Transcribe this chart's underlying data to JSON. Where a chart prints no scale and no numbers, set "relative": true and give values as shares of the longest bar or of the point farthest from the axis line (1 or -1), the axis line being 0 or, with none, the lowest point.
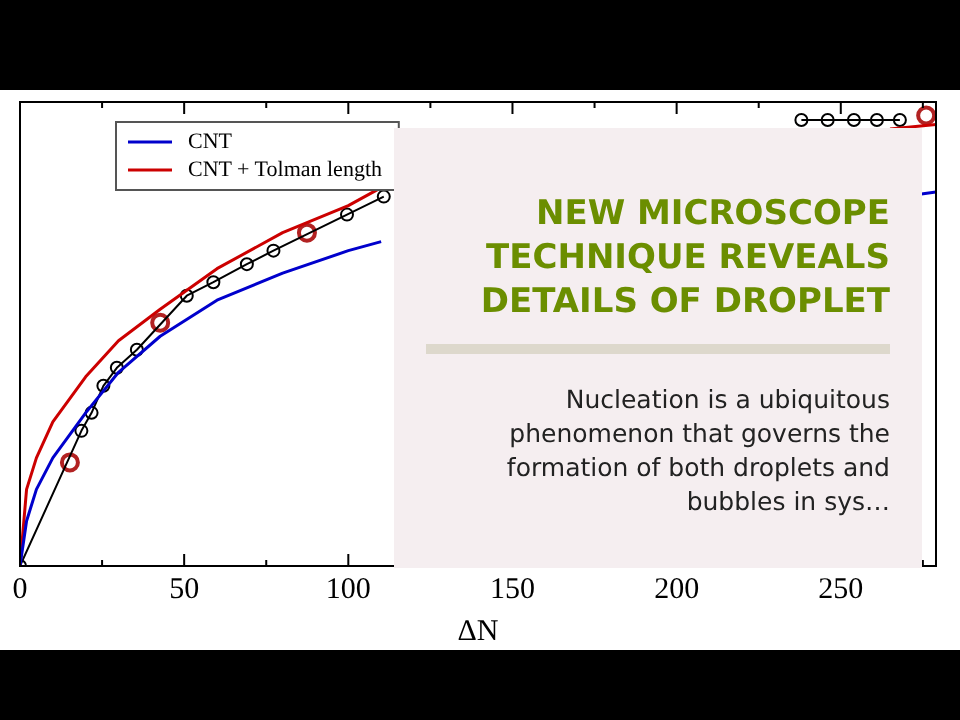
{
  "chart_data": {
    "type": "line",
    "title": "NEW MICROSCOPE TECHNIQUE REVEALS DETAILS OF DROPLET",
    "subtitle": "Nucleation is a ubiquitous phenomenon that governs the formation of both droplets and bubbles in sys…",
    "xlabel": "ΔN",
    "relative": true,
    "xlim": [
      0,
      279
    ],
    "xticks": [
      0,
      50,
      100,
      150,
      200,
      250
    ],
    "tick_labels": "x",
    "grid": false,
    "legend": "top left",
    "series": [
      {
        "name": "CNT",
        "type": "line",
        "color": "#0000cc",
        "marker": "none",
        "x": [
          0,
          2,
          5,
          10,
          15,
          20,
          30,
          42.7,
          60,
          80,
          100,
          110,
          150,
          274,
          279
        ],
        "values": [
          0,
          0.1,
          0.17,
          0.24,
          0.29,
          0.34,
          0.43,
          0.51,
          0.59,
          0.65,
          0.7,
          0.72,
          null,
          0.825,
          0.83
        ]
      },
      {
        "name": "CNT + Tolman length",
        "type": "line",
        "color": "#cc0000",
        "marker": "none",
        "x": [
          0,
          2,
          5,
          10,
          15,
          20,
          30,
          42.7,
          60,
          80,
          100,
          110,
          150,
          265,
          279
        ],
        "values": [
          0,
          0.17,
          0.24,
          0.32,
          0.37,
          0.42,
          0.5,
          0.57,
          0.66,
          0.74,
          0.8,
          0.84,
          null,
          0.97,
          0.98
        ]
      },
      {
        "type": "line",
        "color": "#000000",
        "marker": "circle",
        "x": [
          0,
          18.7,
          21.8,
          25.4,
          29.5,
          35.6,
          50.8,
          58.9,
          69.1,
          77.2,
          99.6,
          110.8,
          150,
          238,
          246,
          254,
          261,
          268
        ],
        "values": [
          0,
          0.3,
          0.34,
          0.4,
          0.44,
          0.48,
          0.6,
          0.63,
          0.67,
          0.7,
          0.78,
          0.82,
          null,
          0.99,
          0.99,
          0.99,
          0.99,
          0.99
        ]
      },
      {
        "type": "scatter",
        "color": "#b22222",
        "marker": "circle",
        "x": [
          15.2,
          42.7,
          87.4,
          276
        ],
        "values": [
          0.23,
          0.54,
          0.74,
          1
        ]
      }
    ]
  }
}
